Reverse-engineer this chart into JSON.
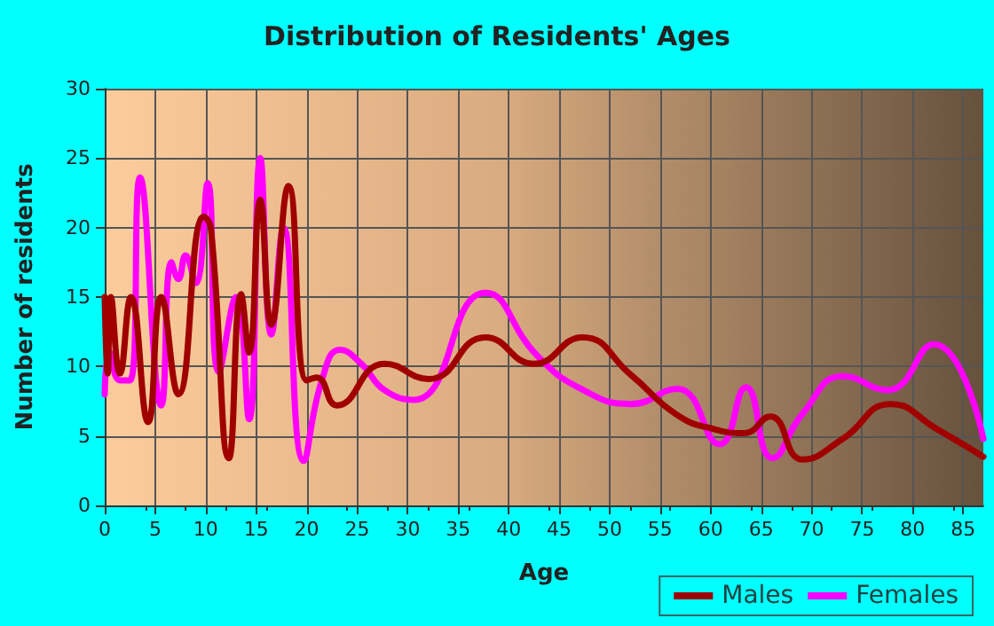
{
  "chart_data": {
    "type": "line",
    "title": "Distribution of Residents' Ages",
    "xlabel": "Age",
    "ylabel": "Number of residents",
    "xlim": [
      0,
      87
    ],
    "xticks": [
      0,
      5,
      10,
      15,
      20,
      25,
      30,
      35,
      40,
      45,
      50,
      55,
      60,
      65,
      70,
      75,
      80,
      85
    ],
    "ylim": [
      0,
      30
    ],
    "yticks": [
      0,
      5,
      10,
      15,
      20,
      25,
      30
    ],
    "grid": true,
    "legend": "bottom right",
    "marker": "none",
    "line_style": "solid",
    "series": [
      {
        "name": "Males",
        "color": "#a00000",
        "x": [
          0,
          0.3,
          0.6,
          1.5,
          2.6,
          4.3,
          5.6,
          7.3,
          9.8,
          10.5,
          12.3,
          13.5,
          14.3,
          15.4,
          16.5,
          18.2,
          20,
          21,
          23,
          27.7,
          32.1,
          37.7,
          42.5,
          47.3,
          52.1,
          56.7,
          60.3,
          63.3,
          65.9,
          69.1,
          73.1,
          77.8,
          82.4,
          87
        ],
        "values": [
          15,
          9.5,
          15,
          9.5,
          15,
          6,
          15,
          8,
          20.8,
          20,
          3.4,
          15.2,
          11,
          22,
          13,
          23,
          9,
          9.2,
          7.2,
          10.2,
          9.1,
          12.1,
          10.2,
          12.1,
          9.4,
          6.5,
          5.5,
          5.2,
          6.4,
          3.3,
          4.8,
          7.3,
          5.5,
          3.5
        ]
      },
      {
        "name": "Females",
        "color": "#ff00ff",
        "x": [
          0,
          0.5,
          1.5,
          2.5,
          3.5,
          5.6,
          6.6,
          7.3,
          8,
          9,
          10.2,
          11.3,
          13,
          14.3,
          15.4,
          16.5,
          17.7,
          19.7,
          21.5,
          23.3,
          25.4,
          27.7,
          30.6,
          37.7,
          42.8,
          47.4,
          52.1,
          56.7,
          60.9,
          63.5,
          66.1,
          69.1,
          73.1,
          77.5,
          82.1,
          87
        ],
        "values": [
          8,
          11,
          9,
          9,
          23.6,
          7.2,
          17.5,
          16.3,
          18,
          16,
          23.2,
          9.6,
          15,
          6.2,
          25,
          12.3,
          20,
          3.2,
          9,
          11.2,
          10.2,
          8.3,
          7.6,
          15.3,
          10.8,
          8.3,
          7.3,
          8.4,
          4.4,
          8.5,
          3.4,
          6.6,
          9.3,
          8.3,
          11.6,
          4.8
        ]
      }
    ]
  }
}
